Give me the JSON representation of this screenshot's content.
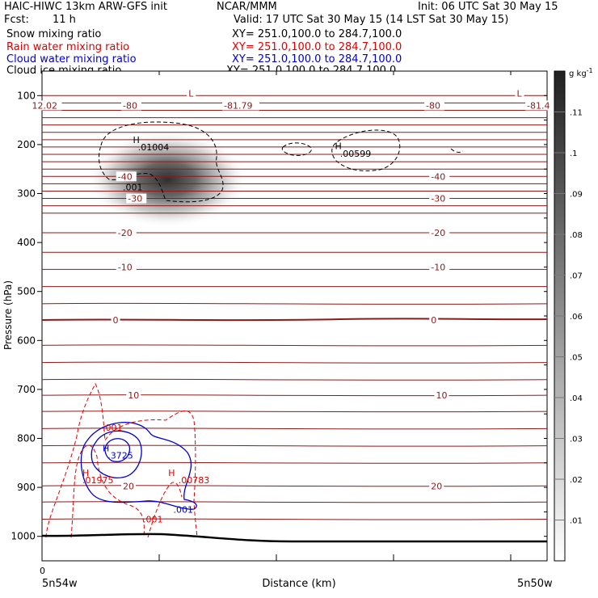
{
  "header": {
    "model": "HAIC-HIWC 13km ARW-GFS init",
    "org": "NCAR/MMM",
    "init": "Init: 06 UTC Sat 30 May 15",
    "fcst_label": "Fcst:",
    "fcst_value": "11 h",
    "valid": "Valid: 17 UTC Sat 30 May 15 (14 LST Sat 30 May 15)"
  },
  "fields": [
    {
      "label": "Snow mixing ratio",
      "xy": "XY= 251.0,100.0 to 284.7,100.0",
      "color": "#000000"
    },
    {
      "label": "Rain water mixing ratio",
      "xy": "XY= 251.0,100.0 to 284.7,100.0",
      "color": "#dd0000"
    },
    {
      "label": "Cloud water mixing ratio",
      "xy": "XY= 251.0,100.0 to 284.7,100.0",
      "color": "#0000cc"
    },
    {
      "label": "Cloud ice mixing ratio",
      "xy": "XY= 251.0,100.0 to 284.7,100.0",
      "color": "#000000"
    }
  ],
  "chart_data": {
    "type": "cross-section",
    "xlabel": "Distance (km)",
    "ylabel": "Pressure (hPa)",
    "x_tick_labels": [
      "0"
    ],
    "x_end_labels": [
      "5n54w",
      "5n50w"
    ],
    "y_ticks": [
      100,
      200,
      300,
      400,
      500,
      600,
      700,
      800,
      900,
      1000
    ],
    "ylim": [
      1050,
      50
    ],
    "temperature_contours": {
      "color": "#8b1a1a",
      "labels": [
        {
          "text": "-80",
          "p": 120,
          "pos": 0.16
        },
        {
          "text": "-81.79",
          "p": 120,
          "pos": 0.36
        },
        {
          "text": "-80",
          "p": 120,
          "pos": 0.76
        },
        {
          "text": "-81.4",
          "p": 120,
          "pos": 0.96
        },
        {
          "text": "-40",
          "p": 265,
          "pos": 0.15
        },
        {
          "text": "-40",
          "p": 265,
          "pos": 0.77
        },
        {
          "text": "-30",
          "p": 310,
          "pos": 0.17
        },
        {
          "text": "-30",
          "p": 310,
          "pos": 0.77
        },
        {
          "text": "-20",
          "p": 380,
          "pos": 0.15
        },
        {
          "text": "-20",
          "p": 380,
          "pos": 0.77
        },
        {
          "text": "-10",
          "p": 450,
          "pos": 0.15
        },
        {
          "text": "-10",
          "p": 450,
          "pos": 0.77
        },
        {
          "text": "0",
          "p": 558,
          "pos": 0.14
        },
        {
          "text": "0",
          "p": 558,
          "pos": 0.77
        },
        {
          "text": "10",
          "p": 712,
          "pos": 0.17
        },
        {
          "text": "10",
          "p": 712,
          "pos": 0.78
        },
        {
          "text": "20",
          "p": 897,
          "pos": 0.16
        },
        {
          "text": "20",
          "p": 897,
          "pos": 0.77
        },
        {
          "text": "12.02",
          "p": 120,
          "pos": -0.02
        },
        {
          "text": "L",
          "p": 95,
          "pos": 0.29
        },
        {
          "text": "L",
          "p": 95,
          "pos": 0.94
        }
      ]
    },
    "snow": {
      "color": "#000000",
      "labels": [
        {
          "text": "H",
          "p": 190,
          "pos": 0.18
        },
        {
          "text": ".01004",
          "p": 205,
          "pos": 0.19
        },
        {
          "text": ".001",
          "p": 287,
          "pos": 0.16
        },
        {
          "text": "H",
          "p": 203,
          "pos": 0.58
        },
        {
          "text": ".00599",
          "p": 218,
          "pos": 0.59
        }
      ]
    },
    "rain": {
      "color": "#dd0000",
      "labels": [
        {
          "text": ".001",
          "p": 778,
          "pos": 0.12
        },
        {
          "text": "H",
          "p": 870,
          "pos": 0.08
        },
        {
          "text": ".01975",
          "p": 885,
          "pos": 0.08
        },
        {
          "text": "H",
          "p": 870,
          "pos": 0.25
        },
        {
          "text": ".00783",
          "p": 885,
          "pos": 0.27
        },
        {
          "text": ".001",
          "p": 965,
          "pos": 0.2
        }
      ]
    },
    "cloud_water": {
      "color": "#0000cc",
      "labels": [
        {
          "text": "H",
          "p": 820,
          "pos": 0.12
        },
        {
          "text": ".3725",
          "p": 835,
          "pos": 0.13
        },
        {
          "text": ".001",
          "p": 945,
          "pos": 0.26
        }
      ]
    },
    "colorbar": {
      "unit": "g kg",
      "unit_sup": "-1",
      "levels": [
        ".01",
        ".02",
        ".03",
        ".04",
        ".05",
        ".06",
        ".07",
        ".08",
        ".09",
        ".1",
        ".11"
      ]
    }
  }
}
